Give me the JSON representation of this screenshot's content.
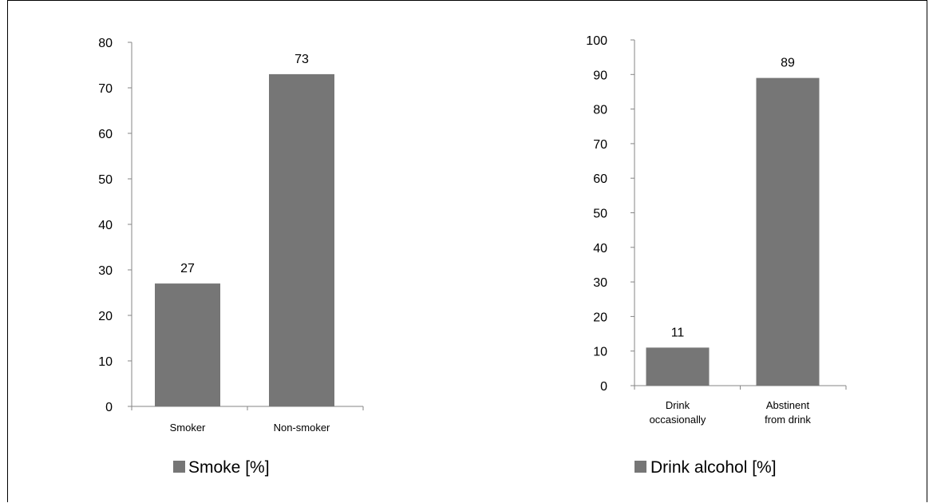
{
  "chart_data": [
    {
      "type": "bar",
      "categories": [
        "Smoker",
        "Non-smoker"
      ],
      "values": [
        27,
        73
      ],
      "data_labels": [
        "27",
        "73"
      ],
      "series": [
        {
          "name": "Smoke [%]",
          "values": [
            27,
            73
          ]
        }
      ],
      "ylim": [
        0,
        80
      ],
      "yticks": [
        "0",
        "10",
        "20",
        "30",
        "40",
        "50",
        "60",
        "70",
        "80"
      ],
      "grid": false,
      "legend_position": "bottom",
      "bar_color": "#767676"
    },
    {
      "type": "bar",
      "categories": [
        [
          "Drink",
          "occasionally"
        ],
        [
          "Abstinent",
          "from drink"
        ]
      ],
      "values": [
        11,
        89
      ],
      "data_labels": [
        "11",
        "89"
      ],
      "series": [
        {
          "name": "Drink alcohol [%]",
          "values": [
            11,
            89
          ]
        }
      ],
      "ylim": [
        0,
        100
      ],
      "yticks": [
        "0",
        "10",
        "20",
        "30",
        "40",
        "50",
        "60",
        "70",
        "80",
        "90",
        "100"
      ],
      "grid": false,
      "legend_position": "bottom",
      "bar_color": "#767676"
    }
  ]
}
